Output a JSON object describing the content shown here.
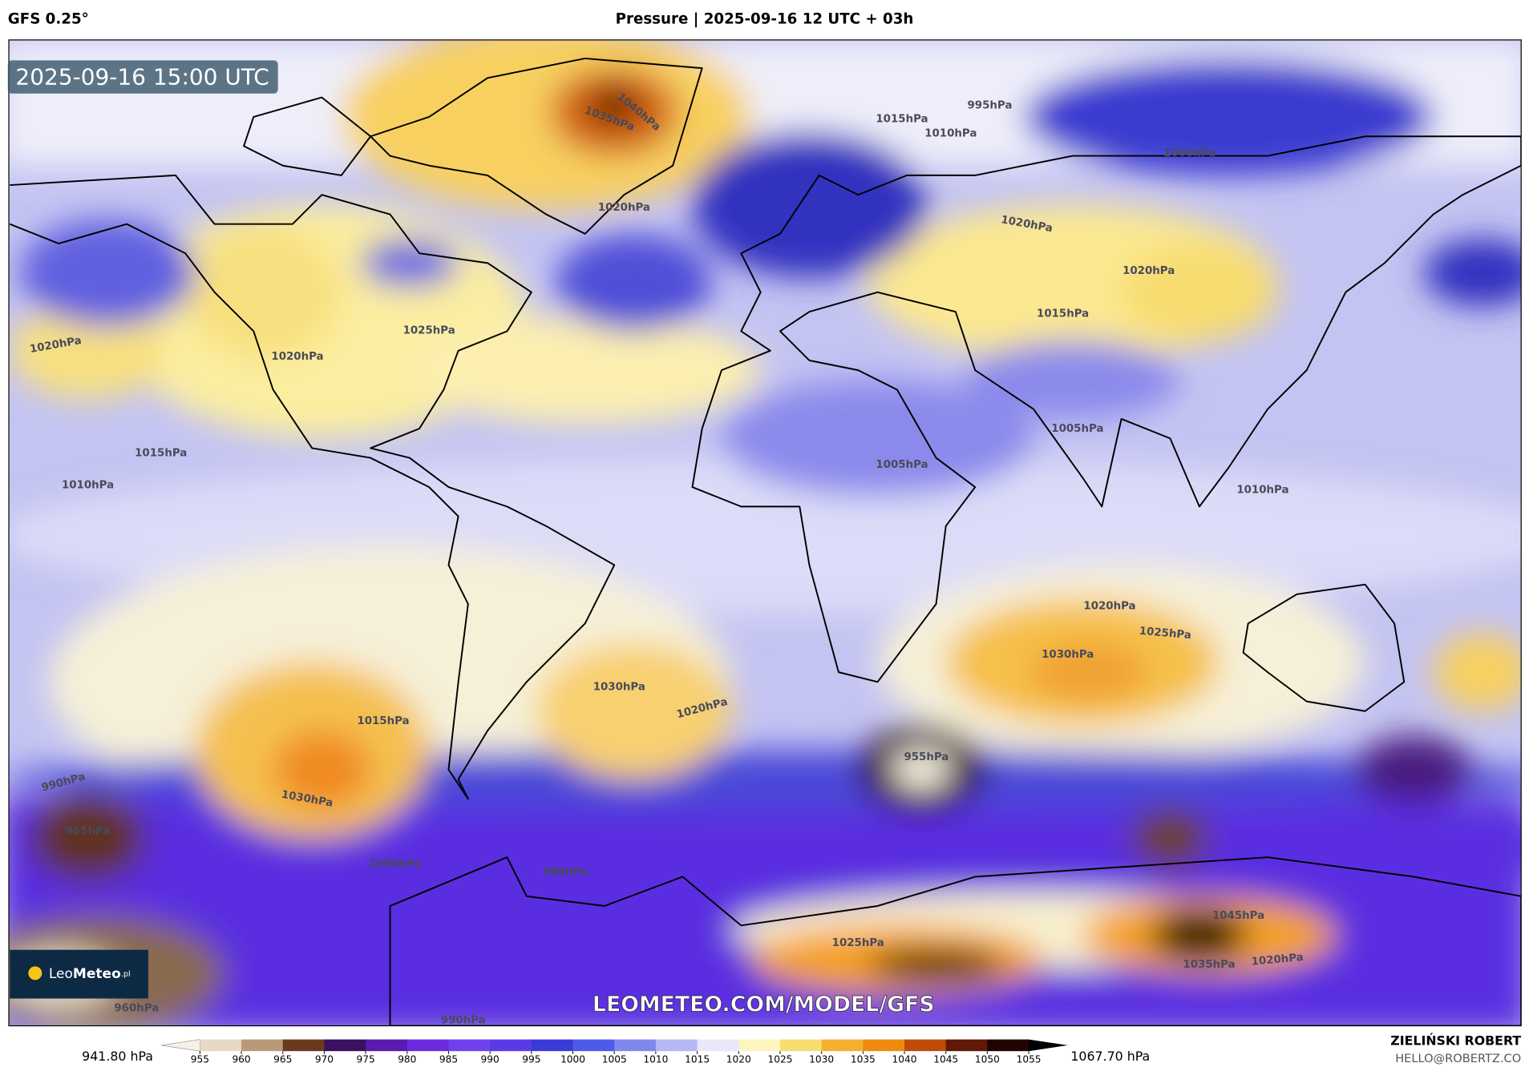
{
  "header": {
    "model": "GFS 0.25°",
    "title": "Pressure | 2025-09-16 12 UTC + 03h"
  },
  "map": {
    "timestamp": "2025-09-16 15:00 UTC",
    "watermark": "LEOMETEO.COM/MODEL/GFS",
    "logo": {
      "first": "Leo",
      "second": "Meteo",
      "suffix": ".pl"
    },
    "isobar_labels": [
      "1040hPa",
      "1035hPa",
      "1020hPa",
      "1015hPa",
      "1010hPa",
      "995hPa",
      "1000hPa",
      "1020hPa",
      "1020hPa",
      "1015hPa",
      "1005hPa",
      "1005hPa",
      "1010hPa",
      "1015hPa",
      "1010hPa",
      "1020hPa",
      "1020hPa",
      "1025hPa",
      "1020hPa",
      "1030hPa",
      "1025hPa",
      "1030hPa",
      "1020hPa",
      "1015hPa",
      "1030hPa",
      "955hPa",
      "965hPa",
      "980hPa",
      "1000hPa",
      "990hPa",
      "1045hPa",
      "1035hPa",
      "1025hPa",
      "1020hPa",
      "960hPa",
      "990hPa"
    ]
  },
  "colorbar": {
    "min_label": "941.80 hPa",
    "max_label": "1067.70 hPa",
    "ticks": [
      955,
      960,
      965,
      970,
      975,
      980,
      985,
      990,
      995,
      1000,
      1005,
      1010,
      1015,
      1020,
      1025,
      1030,
      1035,
      1040,
      1045,
      1050,
      1055
    ],
    "colors": [
      "#f5f0e8",
      "#e6d9c5",
      "#b89a78",
      "#6b3a1e",
      "#3a1060",
      "#5a1ab0",
      "#6a2be0",
      "#7040ee",
      "#5a3ae8",
      "#3a3ad8",
      "#4e5ae8",
      "#8088ee",
      "#b4b8f4",
      "#e8e8fa",
      "#fdf5c0",
      "#f8de70",
      "#f5b030",
      "#ef8a10",
      "#c04a08",
      "#601808",
      "#200404",
      "#000000"
    ]
  },
  "credit": {
    "author": "ZIELIŃSKI ROBERT",
    "email": "HELLO@ROBERTZ.CO"
  }
}
